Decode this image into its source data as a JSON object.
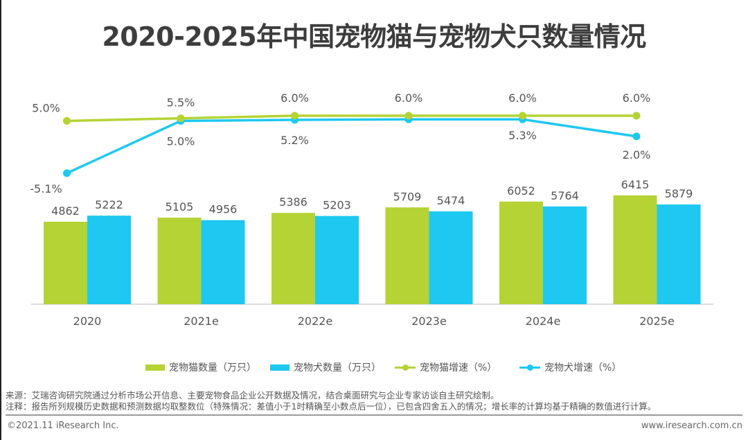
{
  "title": "2020-2025年中国宠物猫与宠物犬只数量情况",
  "colors": {
    "cat": "#b5d334",
    "dog": "#1ec8f0",
    "label_text": "#555555",
    "axis": "#cfcfcf"
  },
  "chart_data": {
    "type": "bar",
    "title": "2020-2025年中国宠物猫与宠物犬只数量情况",
    "xlabel": "",
    "ylabel": "",
    "categories": [
      "2020",
      "2021e",
      "2022e",
      "2023e",
      "2024e",
      "2025e"
    ],
    "series": [
      {
        "name": "宠物猫数量（万只）",
        "type": "bar",
        "values": [
          4862,
          5105,
          5386,
          5709,
          6052,
          6415
        ]
      },
      {
        "name": "宠物犬数量（万只）",
        "type": "bar",
        "values": [
          5222,
          4956,
          5203,
          5474,
          5764,
          5879
        ]
      },
      {
        "name": "宠物猫增速（%）",
        "type": "line",
        "values": [
          5.0,
          5.5,
          6.0,
          6.0,
          6.0,
          6.0
        ],
        "labels": [
          "5.0%",
          "5.5%",
          "6.0%",
          "6.0%",
          "6.0%",
          "6.0%"
        ]
      },
      {
        "name": "宠物犬增速（%）",
        "type": "line",
        "values": [
          -5.1,
          5.0,
          5.2,
          5.3,
          5.3,
          2.0
        ],
        "labels": [
          "-5.1%",
          "5.0%",
          "5.2%",
          "",
          "5.3%",
          "2.0%"
        ]
      }
    ],
    "legend_position": "bottom",
    "grid": false,
    "bar_ylim": [
      0,
      6415
    ],
    "line_ylim": [
      -5.1,
      6.0
    ]
  },
  "legend": [
    {
      "label": "宠物猫数量（万只）",
      "kind": "bar",
      "color": "#b5d334"
    },
    {
      "label": "宠物犬数量（万只）",
      "kind": "bar",
      "color": "#1ec8f0"
    },
    {
      "label": "宠物猫增速（%）",
      "kind": "line",
      "color": "#b5d334"
    },
    {
      "label": "宠物犬增速（%）",
      "kind": "line",
      "color": "#1ec8f0"
    }
  ],
  "notes": {
    "source": "来源：艾瑞咨询研究院通过分析市场公开信息、主要宠物食品企业公开数据及情况，结合桌面研究与企业专家访谈自主研究绘制。",
    "annotation": "注释：报告所列规模历史数据和预测数据均取整数位（特殊情况：差值小于1时精确至小数点后一位），已包含四舍五入的情况；增长率的计算均基于精确的数值进行计算。"
  },
  "footer": {
    "copyright": "©2021.11 iResearch Inc.",
    "website": "www.iresearch.com.cn"
  }
}
